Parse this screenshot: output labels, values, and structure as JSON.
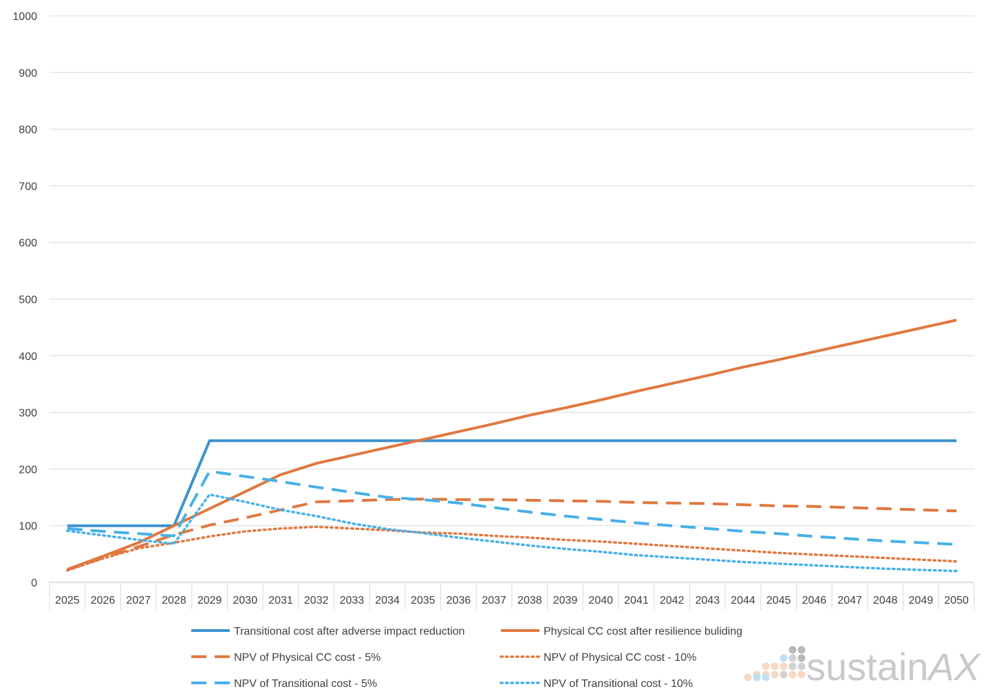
{
  "chart_data": {
    "type": "line",
    "title": "",
    "xlabel": "",
    "ylabel": "",
    "ylim": [
      0,
      1000
    ],
    "yticks": [
      0,
      100,
      200,
      300,
      400,
      500,
      600,
      700,
      800,
      900,
      1000
    ],
    "grid": true,
    "legend_position": "bottom",
    "x": [
      "2025",
      "2026",
      "2027",
      "2028",
      "2029",
      "2030",
      "2031",
      "2032",
      "2033",
      "2034",
      "2035",
      "2036",
      "2037",
      "2038",
      "2039",
      "2040",
      "2041",
      "2042",
      "2043",
      "2044",
      "2045",
      "2046",
      "2047",
      "2048",
      "2049",
      "2050"
    ],
    "series": [
      {
        "name": "Transitional cost after adverse impact reduction",
        "color": "#3c93cf",
        "style": "solid",
        "values": [
          100,
          100,
          100,
          100,
          250,
          250,
          250,
          250,
          250,
          250,
          250,
          250,
          250,
          250,
          250,
          250,
          250,
          250,
          250,
          250,
          250,
          250,
          250,
          250,
          250,
          250
        ]
      },
      {
        "name": "Physical CC cost after resilience buliding",
        "color": "#e07840",
        "style": "solid",
        "values": [
          23,
          46,
          70,
          100,
          130,
          160,
          190,
          210,
          224,
          238,
          252,
          266,
          280,
          295,
          308,
          322,
          337,
          351,
          365,
          380,
          393,
          407,
          421,
          435,
          449,
          463
        ]
      },
      {
        "name": "NPV of Physical CC cost - 5%",
        "color": "#e07840",
        "style": "dashed",
        "values": [
          22,
          43,
          63,
          84,
          101,
          114,
          128,
          142,
          144,
          146,
          147,
          146,
          146,
          145,
          144,
          143,
          141,
          140,
          139,
          137,
          135,
          134,
          132,
          130,
          128,
          126
        ]
      },
      {
        "name": "NPV of Physical CC cost - 10%",
        "color": "#e07840",
        "style": "dotted",
        "values": [
          21,
          42,
          60,
          70,
          81,
          90,
          95,
          98,
          95,
          92,
          88,
          86,
          82,
          79,
          75,
          72,
          68,
          64,
          60,
          56,
          52,
          49,
          46,
          43,
          40,
          37
        ]
      },
      {
        "name": "NPV of Transitional cost - 5%",
        "color": "#47b0e8",
        "style": "dashed",
        "values": [
          95,
          90,
          86,
          82,
          196,
          187,
          178,
          168,
          159,
          150,
          146,
          140,
          132,
          124,
          117,
          111,
          105,
          100,
          95,
          90,
          86,
          81,
          77,
          73,
          70,
          67
        ]
      },
      {
        "name": "NPV of Transitional cost - 10%",
        "color": "#47b0e8",
        "style": "dotted",
        "values": [
          91,
          83,
          75,
          68,
          155,
          142,
          128,
          117,
          104,
          94,
          87,
          79,
          72,
          65,
          59,
          54,
          48,
          44,
          40,
          36,
          33,
          30,
          27,
          24,
          22,
          20
        ]
      }
    ]
  },
  "logo": {
    "text_plain": "sustain",
    "text_italic": "AX",
    "dot_colors": [
      "#f7d9c4",
      "#bfe0f3",
      "#d2d2d2",
      "#b9b9b9"
    ]
  }
}
